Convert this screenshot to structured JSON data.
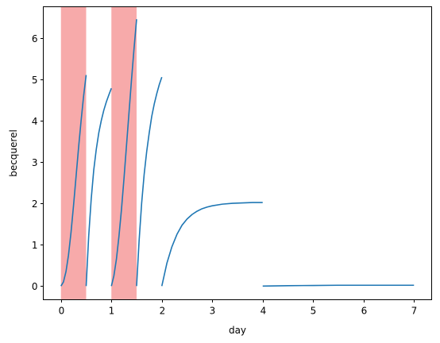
{
  "chart_data": {
    "type": "line",
    "title": "",
    "xlabel": "day",
    "ylabel": "becquerel",
    "xlim": [
      -0.35,
      7.35
    ],
    "ylim": [
      -0.33,
      6.75
    ],
    "xticks": [
      0,
      1,
      2,
      3,
      4,
      5,
      6,
      7
    ],
    "yticks": [
      0,
      1,
      2,
      3,
      4,
      5,
      6
    ],
    "grid": false,
    "legend": "none",
    "line_color": "#1f77b4",
    "shade_color": "#f7aaaa",
    "shaded_intervals": [
      [
        0,
        0.5
      ],
      [
        1,
        1.5
      ]
    ],
    "series": [
      {
        "segments": [
          {
            "x": [
              0,
              0.05,
              0.1,
              0.15,
              0.2,
              0.25,
              0.3,
              0.35,
              0.4,
              0.45,
              0.5
            ],
            "y": [
              0,
              0.1,
              0.35,
              0.75,
              1.3,
              1.95,
              2.65,
              3.35,
              4.0,
              4.6,
              5.1
            ]
          },
          {
            "x": [
              0.5,
              0.55,
              0.6,
              0.65,
              0.7,
              0.75,
              0.8,
              0.85,
              0.9,
              0.95,
              1.0
            ],
            "y": [
              0,
              1.2,
              2.1,
              2.8,
              3.3,
              3.7,
              4.0,
              4.25,
              4.45,
              4.62,
              4.78
            ]
          },
          {
            "x": [
              1.0,
              1.05,
              1.1,
              1.15,
              1.2,
              1.25,
              1.3,
              1.35,
              1.4,
              1.45,
              1.5
            ],
            "y": [
              0,
              0.25,
              0.65,
              1.2,
              1.85,
              2.6,
              3.4,
              4.2,
              5.0,
              5.75,
              6.45
            ]
          },
          {
            "x": [
              1.5,
              1.55,
              1.6,
              1.65,
              1.7,
              1.75,
              1.8,
              1.85,
              1.9,
              1.95,
              2.0
            ],
            "y": [
              0,
              1.1,
              2.0,
              2.7,
              3.25,
              3.7,
              4.1,
              4.4,
              4.65,
              4.87,
              5.05
            ]
          },
          {
            "x": [
              2.0,
              2.1,
              2.2,
              2.3,
              2.4,
              2.5,
              2.6,
              2.7,
              2.8,
              2.9,
              3.0,
              3.2,
              3.4,
              3.6,
              3.8,
              4.0
            ],
            "y": [
              0,
              0.55,
              0.95,
              1.25,
              1.47,
              1.62,
              1.73,
              1.81,
              1.87,
              1.91,
              1.94,
              1.98,
              2.0,
              2.01,
              2.02,
              2.02
            ]
          },
          {
            "x": [
              4.0,
              4.5,
              5.0,
              5.5,
              6.0,
              6.5,
              7.0
            ],
            "y": [
              0,
              0.01,
              0.015,
              0.02,
              0.02,
              0.02,
              0.02
            ]
          }
        ]
      }
    ]
  }
}
